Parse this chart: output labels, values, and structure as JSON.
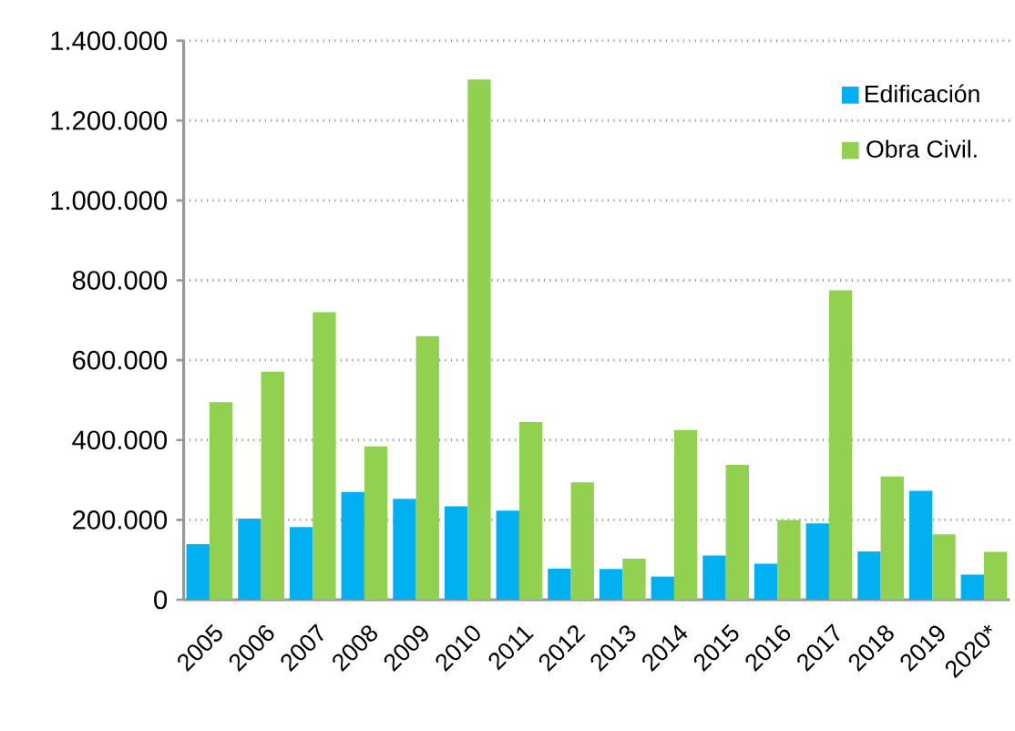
{
  "chart_data": {
    "type": "bar",
    "categories": [
      "2005",
      "2006",
      "2007",
      "2008",
      "2009",
      "2010",
      "2011",
      "2012",
      "2013",
      "2014",
      "2015",
      "2016",
      "2017",
      "2018",
      "2019",
      "2020*"
    ],
    "series": [
      {
        "name": "Edificación",
        "color": "#00b0f0",
        "values": [
          139000,
          203000,
          182000,
          270000,
          253000,
          234000,
          223000,
          78000,
          77000,
          58000,
          111000,
          90000,
          191000,
          121000,
          273000,
          63000
        ]
      },
      {
        "name": "Obra Civil.",
        "color": "#92d050",
        "values": [
          495000,
          571000,
          720000,
          384000,
          660000,
          1303000,
          445000,
          294000,
          103000,
          425000,
          338000,
          200000,
          775000,
          309000,
          164000,
          120000
        ]
      }
    ],
    "ylim": [
      0,
      1400000
    ],
    "yticks": [
      0,
      {
        "value": 200000,
        "label": "200.000"
      },
      {
        "value": 400000,
        "label": "400.000"
      },
      {
        "value": 600000,
        "label": "600.000"
      },
      {
        "value": 800000,
        "label": "800.000"
      },
      {
        "value": 1000000,
        "label": "1.000.000"
      },
      {
        "value": 1200000,
        "label": "1.200.000"
      },
      {
        "value": 1400000,
        "label": "1.400.000"
      }
    ],
    "grid": "y",
    "legend": "top right"
  }
}
